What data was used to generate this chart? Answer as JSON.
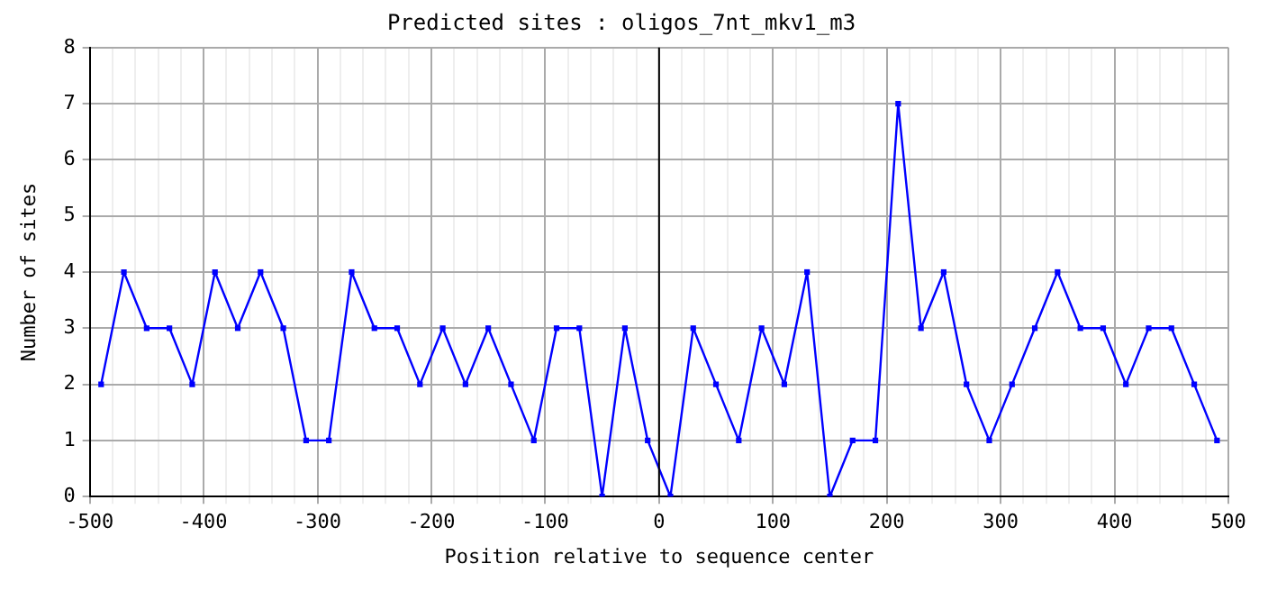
{
  "chart_data": {
    "type": "line",
    "title": "Predicted sites : oligos_7nt_mkv1_m3",
    "xlabel": "Position relative to sequence center",
    "ylabel": "Number of sites",
    "x": [
      -490,
      -470,
      -450,
      -430,
      -410,
      -390,
      -370,
      -350,
      -330,
      -310,
      -290,
      -270,
      -250,
      -230,
      -210,
      -190,
      -170,
      -150,
      -130,
      -110,
      -90,
      -70,
      -50,
      -30,
      -10,
      10,
      30,
      50,
      70,
      90,
      110,
      130,
      150,
      170,
      190,
      210,
      230,
      250,
      270,
      290,
      310,
      330,
      350,
      370,
      390,
      410,
      430,
      450,
      470,
      490
    ],
    "series": [
      {
        "color": "#0000ff",
        "values": [
          2,
          4,
          3,
          3,
          2,
          4,
          3,
          4,
          3,
          1,
          1,
          4,
          3,
          3,
          2,
          3,
          2,
          3,
          2,
          1,
          3,
          3,
          0,
          3,
          1,
          0,
          3,
          2,
          1,
          3,
          2,
          4,
          0,
          1,
          1,
          7,
          3,
          4,
          2,
          1,
          2,
          3,
          4,
          3,
          3,
          2,
          3,
          3,
          2,
          1
        ]
      }
    ],
    "xlim": [
      -500,
      500
    ],
    "xticks": [
      -500,
      {
        "value": -480,
        "label": null
      },
      {
        "value": -460,
        "label": null
      },
      {
        "value": -440,
        "label": null
      },
      {
        "value": -420,
        "label": null
      },
      -400,
      {
        "value": -380,
        "label": null
      },
      {
        "value": -360,
        "label": null
      },
      {
        "value": -340,
        "label": null
      },
      {
        "value": -320,
        "label": null
      },
      -300,
      {
        "value": -280,
        "label": null
      },
      {
        "value": -260,
        "label": null
      },
      {
        "value": -240,
        "label": null
      },
      {
        "value": -220,
        "label": null
      },
      -200,
      {
        "value": -180,
        "label": null
      },
      {
        "value": -160,
        "label": null
      },
      {
        "value": -140,
        "label": null
      },
      {
        "value": -120,
        "label": null
      },
      -100,
      {
        "value": -80,
        "label": null
      },
      {
        "value": -60,
        "label": null
      },
      {
        "value": -40,
        "label": null
      },
      {
        "value": -20,
        "label": null
      },
      0,
      {
        "value": 20,
        "label": null
      },
      {
        "value": 40,
        "label": null
      },
      {
        "value": 60,
        "label": null
      },
      {
        "value": 80,
        "label": null
      },
      100,
      {
        "value": 120,
        "label": null
      },
      {
        "value": 140,
        "label": null
      },
      {
        "value": 160,
        "label": null
      },
      {
        "value": 180,
        "label": null
      },
      200,
      {
        "value": 220,
        "label": null
      },
      {
        "value": 240,
        "label": null
      },
      {
        "value": 260,
        "label": null
      },
      {
        "value": 280,
        "label": null
      },
      300,
      {
        "value": 320,
        "label": null
      },
      {
        "value": 340,
        "label": null
      },
      {
        "value": 360,
        "label": null
      },
      {
        "value": 380,
        "label": null
      },
      400,
      {
        "value": 420,
        "label": null
      },
      {
        "value": 440,
        "label": null
      },
      {
        "value": 460,
        "label": null
      },
      {
        "value": 480,
        "label": null
      },
      500
    ],
    "ylim": [
      0,
      8
    ],
    "yticks": [
      0,
      1,
      2,
      3,
      4,
      5,
      6,
      7,
      8
    ],
    "ref_lines": [
      {
        "axis": "x",
        "value": 0,
        "color": "#000000"
      }
    ],
    "grid": true,
    "legend": false,
    "marker": "square",
    "line_style": "solid"
  }
}
